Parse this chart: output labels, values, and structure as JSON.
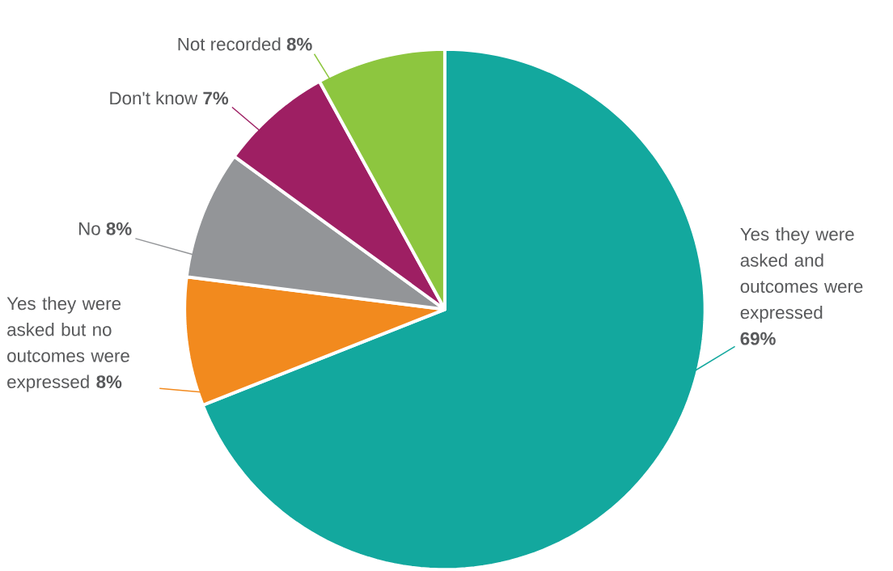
{
  "chart_data": {
    "type": "pie",
    "categories": [
      "Yes they were asked and outcomes were expressed",
      "Yes they were asked but no outcomes were expressed",
      "No",
      "Don't know",
      "Not recorded"
    ],
    "values": [
      69,
      8,
      8,
      7,
      8
    ],
    "value_labels": [
      "69%",
      "8%",
      "8%",
      "7%",
      "8%"
    ],
    "colors": [
      "#13a89e",
      "#f28a1e",
      "#939598",
      "#9e1f63",
      "#8dc63f"
    ]
  }
}
